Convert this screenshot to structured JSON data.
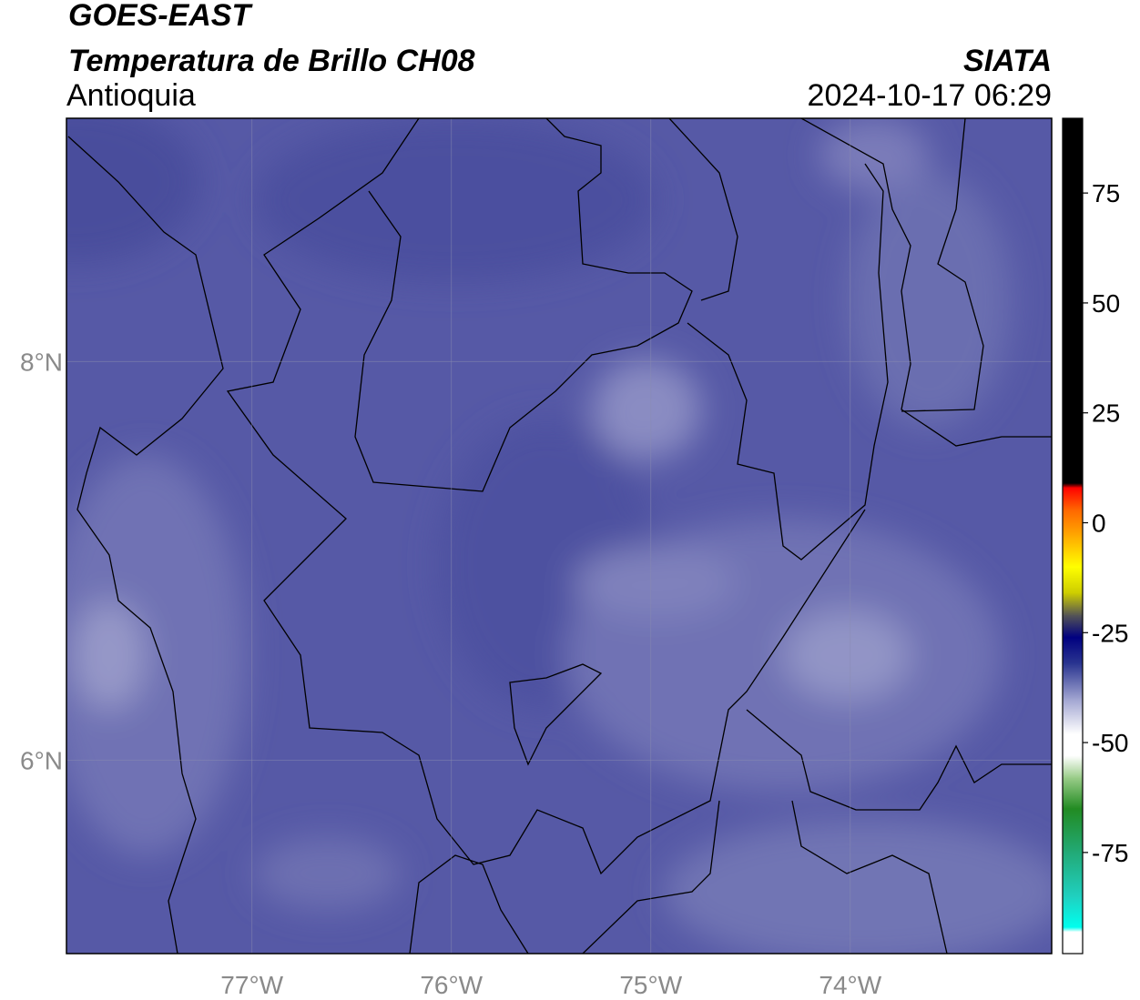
{
  "header": {
    "title": "GOES-EAST",
    "subtitle": "Temperatura de Brillo CH08",
    "region": "Antioquia",
    "source": "SIATA",
    "datetime": "2024-10-17 06:29"
  },
  "map": {
    "lonlim": [
      -77.93,
      -72.99
    ],
    "latlim": [
      5.03,
      9.22
    ],
    "lon_ticks": [
      {
        "value": -77,
        "label": "77°W"
      },
      {
        "value": -76,
        "label": "76°W"
      },
      {
        "value": -75,
        "label": "75°W"
      },
      {
        "value": -74,
        "label": "74°W"
      }
    ],
    "lat_ticks": [
      {
        "value": 8,
        "label": "8°N"
      },
      {
        "value": 6,
        "label": "6°N"
      }
    ],
    "grid": true
  },
  "colorbar": {
    "lim": [
      -98,
      92
    ],
    "ticks": [
      75,
      50,
      25,
      0,
      -25,
      -50,
      -75
    ],
    "stops": [
      {
        "value": 92,
        "color": "#000000"
      },
      {
        "value": 9,
        "color": "#000000"
      },
      {
        "value": 8,
        "color": "#ff0000"
      },
      {
        "value": 3,
        "color": "#ff6600"
      },
      {
        "value": -3,
        "color": "#ffaa00"
      },
      {
        "value": -10,
        "color": "#ffff00"
      },
      {
        "value": -16,
        "color": "#cccc00"
      },
      {
        "value": -21,
        "color": "#555555"
      },
      {
        "value": -26,
        "color": "#000080"
      },
      {
        "value": -32,
        "color": "#2a3590"
      },
      {
        "value": -40,
        "color": "#9fa3d0"
      },
      {
        "value": -48,
        "color": "#ffffff"
      },
      {
        "value": -53,
        "color": "#ffffff"
      },
      {
        "value": -58,
        "color": "#99cc88"
      },
      {
        "value": -65,
        "color": "#228b22"
      },
      {
        "value": -75,
        "color": "#22aa77"
      },
      {
        "value": -85,
        "color": "#20d0c0"
      },
      {
        "value": -92,
        "color": "#00ffee"
      },
      {
        "value": -93,
        "color": "#ffffff"
      },
      {
        "value": -98,
        "color": "#ffffff"
      }
    ]
  }
}
